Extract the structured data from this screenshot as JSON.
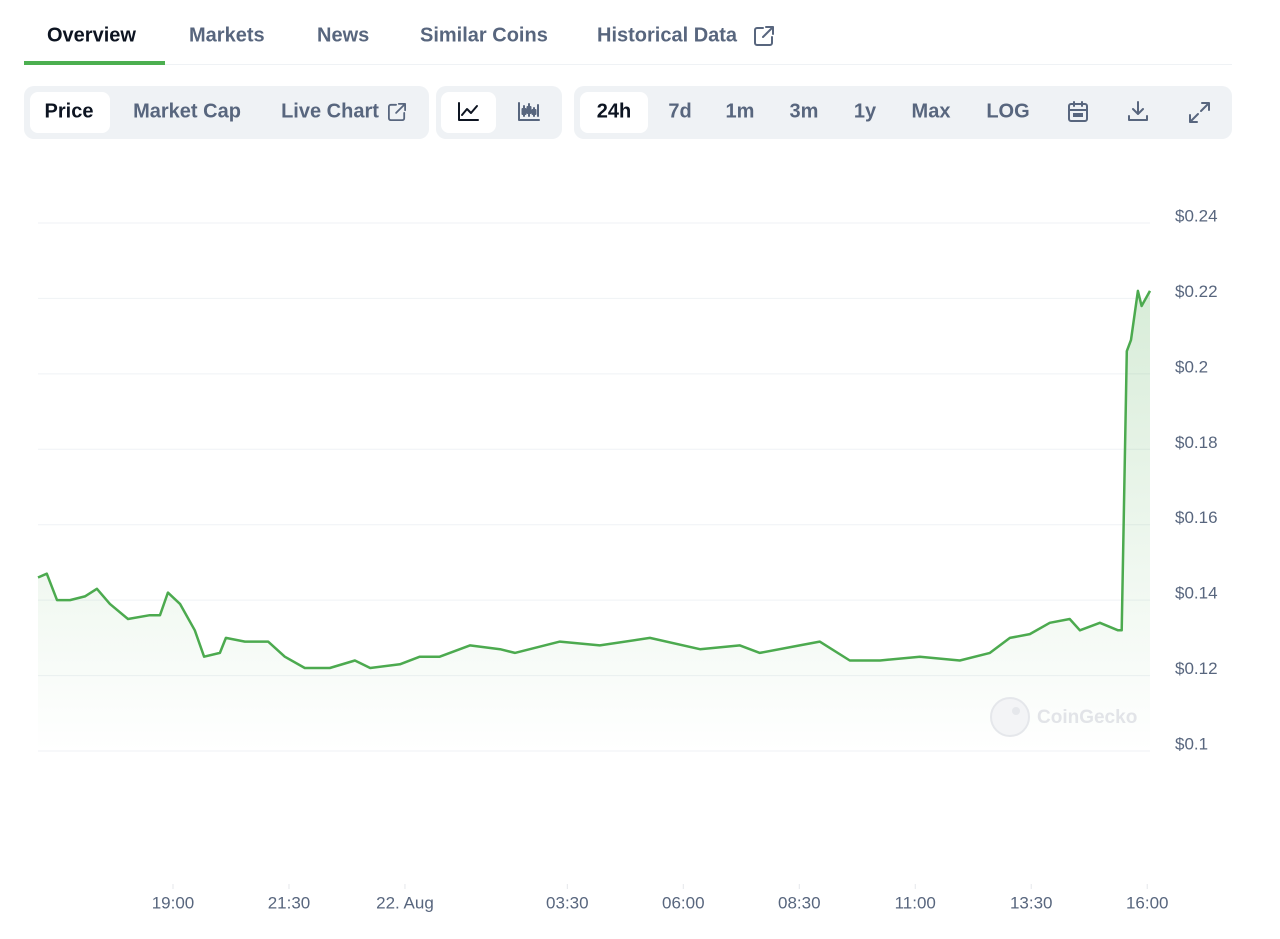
{
  "tabs": [
    "Overview",
    "Markets",
    "News",
    "Similar Coins",
    "Historical Data"
  ],
  "toolbar": {
    "chart_options": [
      "Price",
      "Market Cap",
      "Live Chart"
    ],
    "ranges": [
      "24h",
      "7d",
      "1m",
      "3m",
      "1y",
      "Max",
      "LOG"
    ]
  },
  "chart_data": {
    "type": "line",
    "watermark": "CoinGecko",
    "color": "#4caa4f",
    "grid": true,
    "x": [
      -7.91,
      -7.72,
      -7.5,
      -7.22,
      -6.9,
      -6.64,
      -6.36,
      -5.97,
      -5.5,
      -5.28,
      -5.11,
      -4.85,
      -4.53,
      -4.33,
      -3.99,
      -3.86,
      -3.45,
      -2.95,
      -2.59,
      -2.16,
      -1.62,
      -1.08,
      -0.75,
      -0.11,
      0.32,
      0.75,
      1.4,
      2.05,
      2.37,
      3.34,
      4.2,
      5.28,
      6.36,
      7.22,
      7.65,
      8.51,
      8.94,
      9.59,
      10.24,
      11.1,
      11.96,
      12.61,
      13.04,
      13.47,
      13.9,
      14.33,
      14.55,
      14.98,
      15.37,
      15.45,
      15.56,
      15.65,
      15.8,
      15.88,
      16.06
    ],
    "values": [
      0.146,
      0.147,
      0.14,
      0.14,
      0.141,
      0.143,
      0.139,
      0.135,
      0.136,
      0.136,
      0.142,
      0.139,
      0.132,
      0.125,
      0.126,
      0.13,
      0.129,
      0.129,
      0.125,
      0.122,
      0.122,
      0.124,
      0.122,
      0.123,
      0.125,
      0.125,
      0.128,
      0.127,
      0.126,
      0.129,
      0.128,
      0.13,
      0.127,
      0.128,
      0.126,
      0.128,
      0.129,
      0.124,
      0.124,
      0.125,
      0.124,
      0.126,
      0.13,
      0.131,
      0.134,
      0.135,
      0.132,
      0.134,
      0.132,
      0.132,
      0.206,
      0.209,
      0.222,
      0.218,
      0.222
    ],
    "xlim": [
      -7.91,
      16.06
    ],
    "xticks": [
      {
        "value": -5,
        "label": "19:00"
      },
      {
        "value": -2.5,
        "label": "21:30"
      },
      {
        "value": 0,
        "label": "22. Aug"
      },
      {
        "value": 3.5,
        "label": "03:30"
      },
      {
        "value": 6,
        "label": "06:00"
      },
      {
        "value": 8.5,
        "label": "08:30"
      },
      {
        "value": 11,
        "label": "11:00"
      },
      {
        "value": 13.5,
        "label": "13:30"
      },
      {
        "value": 16,
        "label": "16:00"
      }
    ],
    "ylim": [
      0.1,
      0.24
    ],
    "yticks": [
      {
        "value": 0.1,
        "label": "$0.1"
      },
      {
        "value": 0.12,
        "label": "$0.12"
      },
      {
        "value": 0.14,
        "label": "$0.14"
      },
      {
        "value": 0.16,
        "label": "$0.16"
      },
      {
        "value": 0.18,
        "label": "$0.18"
      },
      {
        "value": 0.2,
        "label": "$0.2"
      },
      {
        "value": 0.22,
        "label": "$0.22"
      },
      {
        "value": 0.24,
        "label": "$0.24"
      }
    ]
  }
}
